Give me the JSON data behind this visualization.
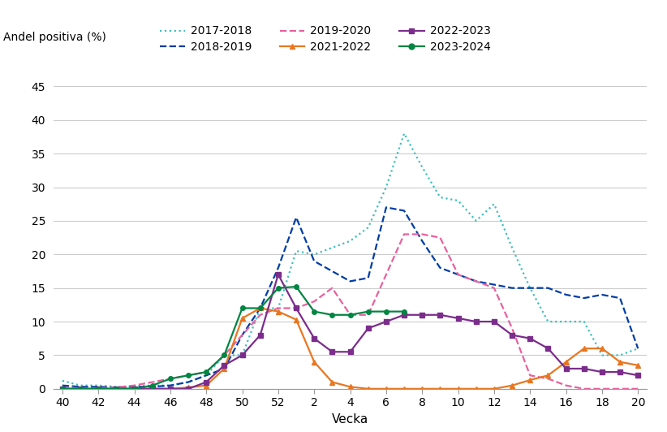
{
  "title": "",
  "ylabel": "Andel positiva (%)",
  "xlabel": "Vecka",
  "ylim": [
    0,
    45
  ],
  "yticks": [
    0,
    5,
    10,
    15,
    20,
    25,
    30,
    35,
    40,
    45
  ],
  "x_labels": [
    "40",
    "42",
    "44",
    "46",
    "48",
    "50",
    "52",
    "2",
    "4",
    "6",
    "8",
    "10",
    "12",
    "14",
    "16",
    "18",
    "20"
  ],
  "shown_weeks": [
    40,
    42,
    44,
    46,
    48,
    50,
    52,
    2,
    4,
    6,
    8,
    10,
    12,
    14,
    16,
    18,
    20
  ],
  "series": [
    {
      "label": "2017-2018",
      "color": "#3DBFBF",
      "linestyle": "dotted",
      "linewidth": 1.6,
      "marker": null,
      "markersize": 0,
      "x": [
        40,
        41,
        42,
        43,
        44,
        45,
        46,
        47,
        48,
        49,
        50,
        51,
        52,
        1,
        2,
        3,
        4,
        5,
        6,
        7,
        8,
        9,
        10,
        11,
        12,
        13,
        14,
        15,
        16,
        17,
        18,
        19,
        20
      ],
      "y": [
        1.2,
        0.5,
        0.5,
        0.3,
        0.4,
        0.5,
        0.5,
        1.0,
        2.0,
        5.0,
        5.0,
        12.0,
        12.0,
        20.5,
        20.0,
        21.0,
        22.0,
        24.0,
        30.0,
        38.0,
        33.0,
        28.5,
        28.0,
        25.0,
        27.5,
        21.0,
        15.0,
        10.0,
        10.0,
        10.0,
        5.0,
        5.0,
        6.0
      ]
    },
    {
      "label": "2018-2019",
      "color": "#003DA5",
      "linestyle": "dashed",
      "linewidth": 1.6,
      "marker": null,
      "markersize": 0,
      "x": [
        40,
        41,
        42,
        43,
        44,
        45,
        46,
        47,
        48,
        49,
        50,
        51,
        52,
        1,
        2,
        3,
        4,
        5,
        6,
        7,
        8,
        9,
        10,
        11,
        12,
        13,
        14,
        15,
        16,
        17,
        18,
        19,
        20
      ],
      "y": [
        0.5,
        0.3,
        0.3,
        0.2,
        0.3,
        0.3,
        0.5,
        1.0,
        2.0,
        3.0,
        8.0,
        12.0,
        18.0,
        25.5,
        19.0,
        17.5,
        16.0,
        16.5,
        27.0,
        26.5,
        22.0,
        18.0,
        17.0,
        16.0,
        15.5,
        15.0,
        15.0,
        15.0,
        14.0,
        13.5,
        14.0,
        13.5,
        6.0
      ]
    },
    {
      "label": "2019-2020",
      "color": "#E8619D",
      "linestyle": "dashed",
      "linewidth": 1.6,
      "marker": null,
      "markersize": 0,
      "x": [
        40,
        41,
        42,
        43,
        44,
        45,
        46,
        47,
        48,
        49,
        50,
        51,
        52,
        1,
        2,
        3,
        4,
        5,
        6,
        7,
        8,
        9,
        10,
        11,
        12,
        13,
        14,
        15,
        16,
        17,
        18,
        19,
        20
      ],
      "y": [
        0.2,
        0.1,
        0.1,
        0.2,
        0.5,
        1.0,
        1.5,
        2.0,
        2.5,
        5.0,
        8.0,
        11.0,
        12.0,
        12.0,
        13.0,
        15.0,
        11.0,
        11.0,
        17.0,
        23.0,
        23.0,
        22.5,
        17.0,
        16.0,
        15.0,
        9.0,
        2.0,
        1.5,
        0.5,
        0.0,
        0.0,
        0.0,
        0.0
      ]
    },
    {
      "label": "2021-2022",
      "color": "#E87722",
      "linestyle": "solid",
      "linewidth": 1.6,
      "marker": "^",
      "markersize": 5,
      "x": [
        40,
        41,
        42,
        43,
        44,
        45,
        46,
        47,
        48,
        49,
        50,
        51,
        52,
        1,
        2,
        3,
        4,
        5,
        6,
        7,
        8,
        9,
        10,
        11,
        12,
        13,
        14,
        15,
        16,
        17,
        18,
        19,
        20
      ],
      "y": [
        0.0,
        0.0,
        0.0,
        0.0,
        0.0,
        0.0,
        0.0,
        0.2,
        0.5,
        3.0,
        10.5,
        12.0,
        11.5,
        10.3,
        4.0,
        1.0,
        0.3,
        0.0,
        0.0,
        0.0,
        0.0,
        0.0,
        0.0,
        0.0,
        0.0,
        0.5,
        1.3,
        2.0,
        4.0,
        6.0,
        6.0,
        4.0,
        3.5
      ]
    },
    {
      "label": "2022-2023",
      "color": "#7B2D8B",
      "linestyle": "solid",
      "linewidth": 1.6,
      "marker": "s",
      "markersize": 4,
      "x": [
        40,
        41,
        42,
        43,
        44,
        45,
        46,
        47,
        48,
        49,
        50,
        51,
        52,
        1,
        2,
        3,
        4,
        5,
        6,
        7,
        8,
        9,
        10,
        11,
        12,
        13,
        14,
        15,
        16,
        17,
        18,
        19,
        20
      ],
      "y": [
        0.0,
        0.0,
        0.0,
        0.0,
        0.0,
        0.0,
        0.0,
        0.0,
        1.0,
        3.5,
        5.0,
        8.0,
        17.0,
        12.0,
        7.5,
        5.5,
        5.5,
        9.0,
        10.0,
        11.0,
        11.0,
        11.0,
        10.5,
        10.0,
        10.0,
        8.0,
        7.5,
        6.0,
        3.0,
        3.0,
        2.5,
        2.5,
        2.0
      ]
    },
    {
      "label": "2023-2024",
      "color": "#008542",
      "linestyle": "solid",
      "linewidth": 1.6,
      "marker": "o",
      "markersize": 4,
      "x": [
        40,
        41,
        42,
        43,
        44,
        45,
        46,
        47,
        48,
        49,
        50,
        51,
        52,
        1,
        2,
        3,
        4,
        5,
        6,
        7
      ],
      "y": [
        0.0,
        0.0,
        0.0,
        0.0,
        0.0,
        0.5,
        1.5,
        2.0,
        2.5,
        5.0,
        12.0,
        12.0,
        15.0,
        15.2,
        11.5,
        11.0,
        11.0,
        11.5,
        11.5,
        11.5
      ]
    }
  ],
  "background_color": "#ffffff",
  "grid_color": "#cccccc",
  "legend_row1": [
    "2017-2018",
    "2018-2019",
    "2019-2020"
  ],
  "legend_row2": [
    "2021-2022",
    "2022-2023",
    "2023-2024"
  ]
}
